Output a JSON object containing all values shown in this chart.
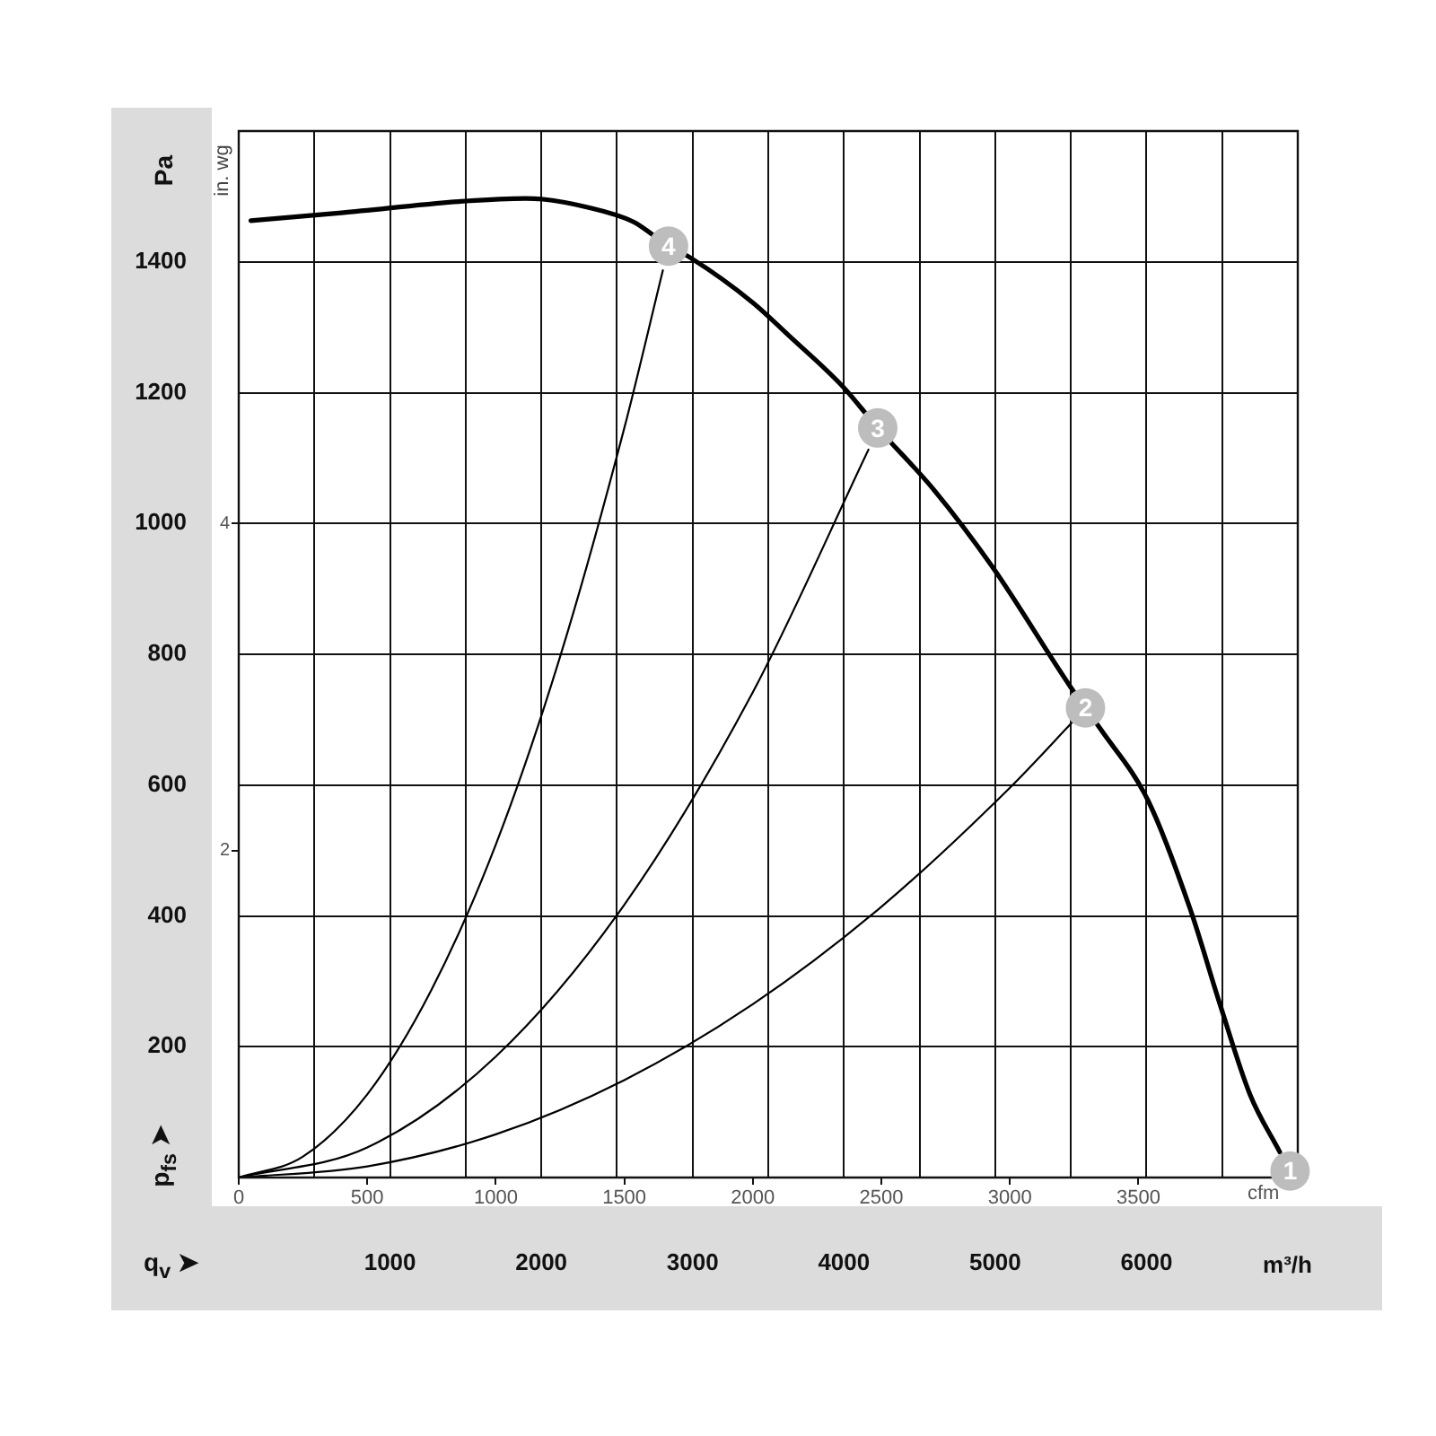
{
  "chart_data": {
    "type": "line",
    "xlabel": "cfm",
    "x2label": "m³/h",
    "ylabel": "Pa",
    "y2label": "in. wg",
    "xlim": [
      0,
      4120
    ],
    "xticks": [
      0,
      500,
      1000,
      1500,
      2000,
      2500,
      3000,
      3500
    ],
    "x2lim": [
      0,
      7000
    ],
    "x2ticks": [
      {
        "value": 500,
        "label": null
      },
      1000,
      {
        "value": 1500,
        "label": null
      },
      2000,
      {
        "value": 2500,
        "label": null
      },
      3000,
      {
        "value": 3500,
        "label": null
      },
      4000,
      {
        "value": 4500,
        "label": null
      },
      5000,
      {
        "value": 5500,
        "label": null
      },
      6000,
      {
        "value": 6500,
        "label": null
      }
    ],
    "ylim": [
      0,
      1600
    ],
    "yticks": [
      {
        "value": 0,
        "label": null
      },
      200,
      400,
      600,
      800,
      1000,
      1200,
      1400
    ],
    "y2lim": [
      0,
      6.4
    ],
    "y2ticks": [
      2,
      4
    ],
    "grid": true,
    "legend": false,
    "marker": "none",
    "line_style": "solid",
    "series": [
      {
        "color": "#000000",
        "x": [
          47,
          400,
          883,
          1117,
          1176,
          1350,
          1536,
          1672,
          1758,
          2002,
          2141,
          2351,
          2486,
          2701,
          2933,
          3236,
          3294,
          3352,
          3538,
          3701,
          3818,
          3934,
          4050
        ],
        "values": [
          1463,
          1475,
          1493,
          1497,
          1496,
          1484,
          1461,
          1424,
          1406,
          1337,
          1287,
          1209,
          1146,
          1053,
          933,
          750,
          718,
          686,
          576,
          411,
          264,
          127,
          39
        ]
      },
      {
        "color": "#000000",
        "x": [
          0,
          250,
          500,
          750,
          1000,
          1250,
          1500,
          1650
        ],
        "values": [
          0,
          32,
          127,
          287,
          509,
          796,
          1146,
          1387
        ]
      },
      {
        "color": "#000000",
        "x": [
          0,
          500,
          1000,
          1500,
          2000,
          2450
        ],
        "values": [
          0,
          46,
          185,
          417,
          742,
          1113
        ]
      },
      {
        "color": "#000000",
        "x": [
          0,
          500,
          1000,
          1500,
          2000,
          2500,
          3000,
          3250
        ],
        "values": [
          0,
          17,
          66,
          149,
          265,
          414,
          596,
          699
        ]
      }
    ],
    "annotations": [
      {
        "text": "1",
        "x": 4090,
        "y": 10
      },
      {
        "text": "2",
        "x": 3294,
        "y": 718
      },
      {
        "text": "3",
        "x": 2486,
        "y": 1146
      },
      {
        "text": "4",
        "x": 1672,
        "y": 1424
      },
      "p$_{fs}$ ➤",
      "q$_{v}$ ➤"
    ]
  }
}
